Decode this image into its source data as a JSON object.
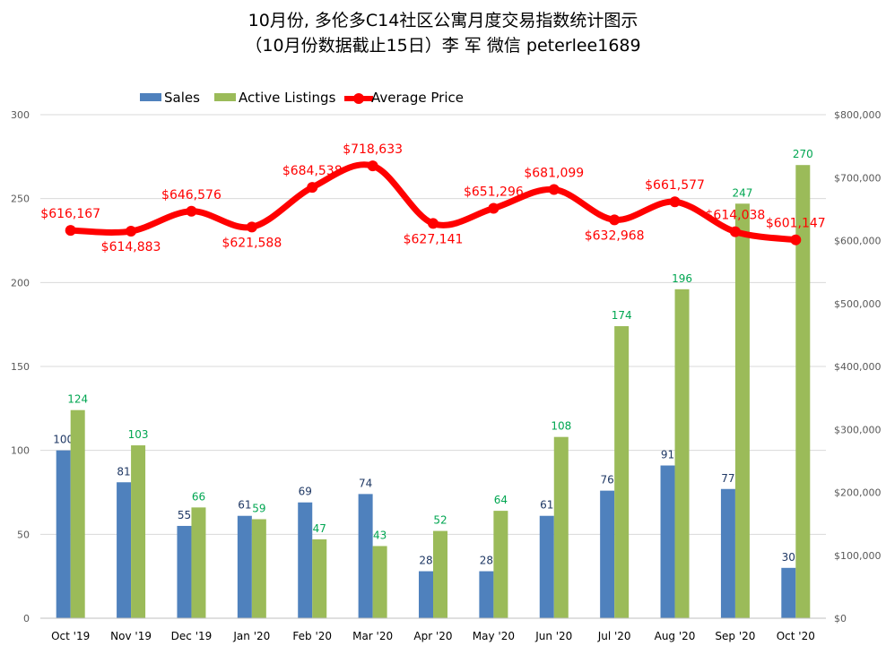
{
  "chart_data": {
    "type": "bar",
    "title": "10月份, 多伦多C14社区公寓月度交易指数统计图示",
    "subtitle": "（10月份数据截止15日）李 军  微信  peterlee1689",
    "categories": [
      "Oct '19",
      "Nov '19",
      "Dec '19",
      "Jan '20",
      "Feb '20",
      "Mar '20",
      "Apr '20",
      "May '20",
      "Jun '20",
      "Jul '20",
      "Aug '20",
      "Sep '20",
      "Oct '20"
    ],
    "series": [
      {
        "name": "Sales",
        "type": "bar",
        "axis": "left",
        "color": "#4f81bd",
        "values": [
          100,
          81,
          55,
          61,
          69,
          74,
          28,
          28,
          61,
          76,
          91,
          77,
          30
        ],
        "labels": [
          "100",
          "81",
          "55",
          "61",
          "69",
          "74",
          "28",
          "28",
          "61",
          "76",
          "91",
          "77",
          "30"
        ]
      },
      {
        "name": "Active Listings",
        "type": "bar",
        "axis": "left",
        "color": "#9bbb59",
        "values": [
          124,
          103,
          66,
          59,
          47,
          43,
          52,
          64,
          108,
          174,
          196,
          247,
          270
        ],
        "labels": [
          "124",
          "103",
          "66",
          "59",
          "47",
          "43",
          "52",
          "64",
          "108",
          "174",
          "196",
          "247",
          "270"
        ]
      },
      {
        "name": "Average Price",
        "type": "line",
        "axis": "right",
        "color": "#ff0000",
        "values": [
          616167,
          614883,
          646576,
          621588,
          684538,
          718633,
          627141,
          651296,
          681099,
          632968,
          661577,
          614038,
          601147
        ],
        "labels": [
          "$616,167",
          "$614,883",
          "$646,576",
          "$621,588",
          "$684,538",
          "$718,633",
          "$627,141",
          "$651,296",
          "$681,099",
          "$632,968",
          "$661,577",
          "$614,038",
          "$601,147"
        ]
      }
    ],
    "y_left": {
      "min": 0,
      "max": 300,
      "ticks": [
        "0",
        "50",
        "100",
        "150",
        "200",
        "250",
        "300"
      ]
    },
    "y_right": {
      "min": 0,
      "max": 800000,
      "ticks": [
        "$0",
        "$100,000",
        "$200,000",
        "$300,000",
        "$400,000",
        "$500,000",
        "$600,000",
        "$700,000",
        "$800,000"
      ]
    },
    "legend_position": "top",
    "grid": true
  }
}
